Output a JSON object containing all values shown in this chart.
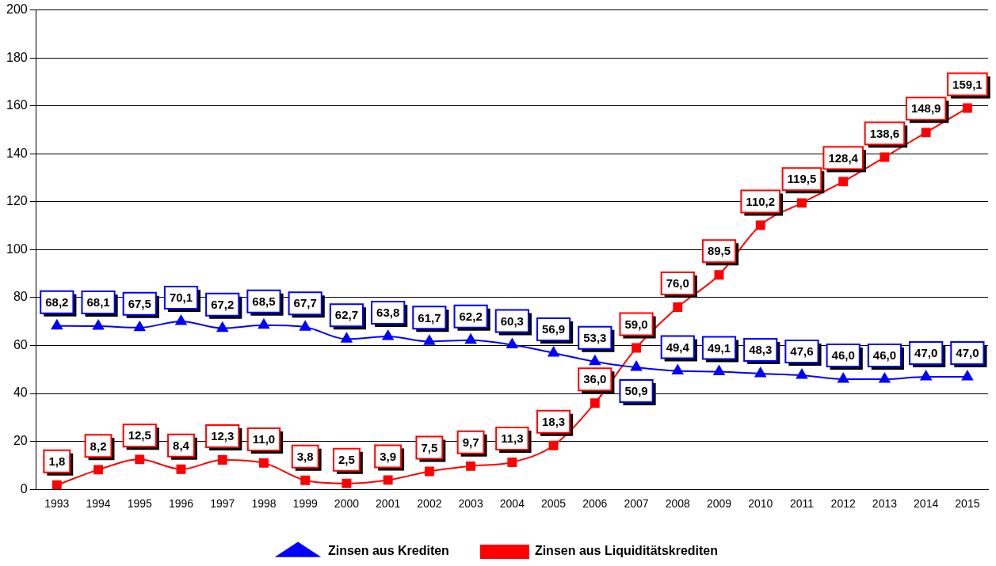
{
  "chart_data": {
    "type": "line",
    "categories": [
      "1993",
      "1994",
      "1995",
      "1996",
      "1997",
      "1998",
      "1999",
      "2000",
      "2001",
      "2002",
      "2003",
      "2004",
      "2005",
      "2006",
      "2007",
      "2008",
      "2009",
      "2010",
      "2011",
      "2012",
      "2013",
      "2014",
      "2015"
    ],
    "series": [
      {
        "name": "Zinsen aus Krediten",
        "color": "#0000ff",
        "marker": "triangle",
        "values": [
          68.2,
          68.1,
          67.5,
          70.1,
          67.2,
          68.5,
          67.7,
          62.7,
          63.8,
          61.7,
          62.2,
          60.3,
          56.9,
          53.3,
          50.9,
          49.4,
          49.1,
          48.3,
          47.6,
          46.0,
          46.0,
          47.0,
          47.0
        ],
        "value_labels": [
          "68,2",
          "68,1",
          "67,5",
          "70,1",
          "67,2",
          "68,5",
          "67,7",
          "62,7",
          "63,8",
          "61,7",
          "62,2",
          "60,3",
          "56,9",
          "53,3",
          "50,9",
          "49,4",
          "49,1",
          "48,3",
          "47,6",
          "46,0",
          "46,0",
          "47,0",
          "47,0"
        ]
      },
      {
        "name": "Zinsen aus Liquiditätskrediten",
        "color": "#ff0000",
        "marker": "square",
        "values": [
          1.8,
          8.2,
          12.5,
          8.4,
          12.3,
          11.0,
          3.8,
          2.5,
          3.9,
          7.5,
          9.7,
          11.3,
          18.3,
          36.0,
          59.0,
          76.0,
          89.5,
          110.2,
          119.5,
          128.4,
          138.6,
          148.9,
          159.1
        ],
        "value_labels": [
          "1,8",
          "8,2",
          "12,5",
          "8,4",
          "12,3",
          "11,0",
          "3,8",
          "2,5",
          "3,9",
          "7,5",
          "9,7",
          "11,3",
          "18,3",
          "36,0",
          "59,0",
          "76,0",
          "89,5",
          "110,2",
          "119,5",
          "128,4",
          "138,6",
          "148,9",
          "159,1"
        ]
      }
    ],
    "ylim": [
      0,
      200
    ],
    "yticks": [
      0,
      20,
      40,
      60,
      80,
      100,
      120,
      140,
      160,
      180,
      200
    ],
    "grid": "y",
    "legend": "bottom"
  }
}
